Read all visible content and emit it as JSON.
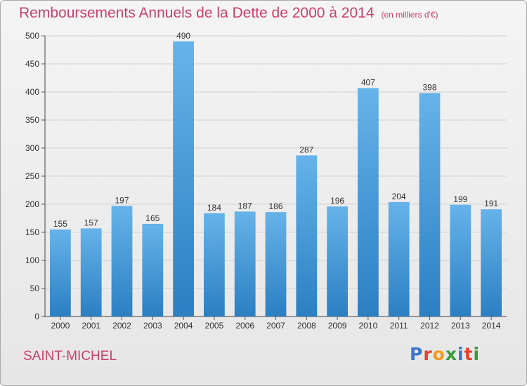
{
  "title": "Remboursements Annuels de la Dette de 2000 à 2014",
  "subtitle": "(en milliers d'€)",
  "commune": "SAINT-MICHEL",
  "logo": {
    "text": "Proxiti",
    "colors": [
      "#3a78c8",
      "#e8412c",
      "#f29a1f",
      "#3a9b3a",
      "#3a78c8",
      "#e8412c",
      "#3a9b3a"
    ]
  },
  "colors": {
    "title": "#c8426b",
    "bar_light": "#66b3ea",
    "bar_dark": "#2b7fc2",
    "grid": "#d2d2d2"
  },
  "chart_data": {
    "type": "bar",
    "title": "Remboursements Annuels de la Dette de 2000 à 2014",
    "subtitle": "(en milliers d'€)",
    "xlabel": "",
    "ylabel": "",
    "ylim": [
      0,
      500
    ],
    "yticks": [
      0,
      50,
      100,
      150,
      200,
      250,
      300,
      350,
      400,
      450,
      500
    ],
    "grid": true,
    "legend": "none",
    "categories": [
      "2000",
      "2001",
      "2002",
      "2003",
      "2004",
      "2005",
      "2006",
      "2007",
      "2008",
      "2009",
      "2010",
      "2011",
      "2012",
      "2013",
      "2014"
    ],
    "values": [
      155,
      157,
      197,
      165,
      490,
      184,
      187,
      186,
      287,
      196,
      407,
      204,
      398,
      199,
      191
    ]
  }
}
